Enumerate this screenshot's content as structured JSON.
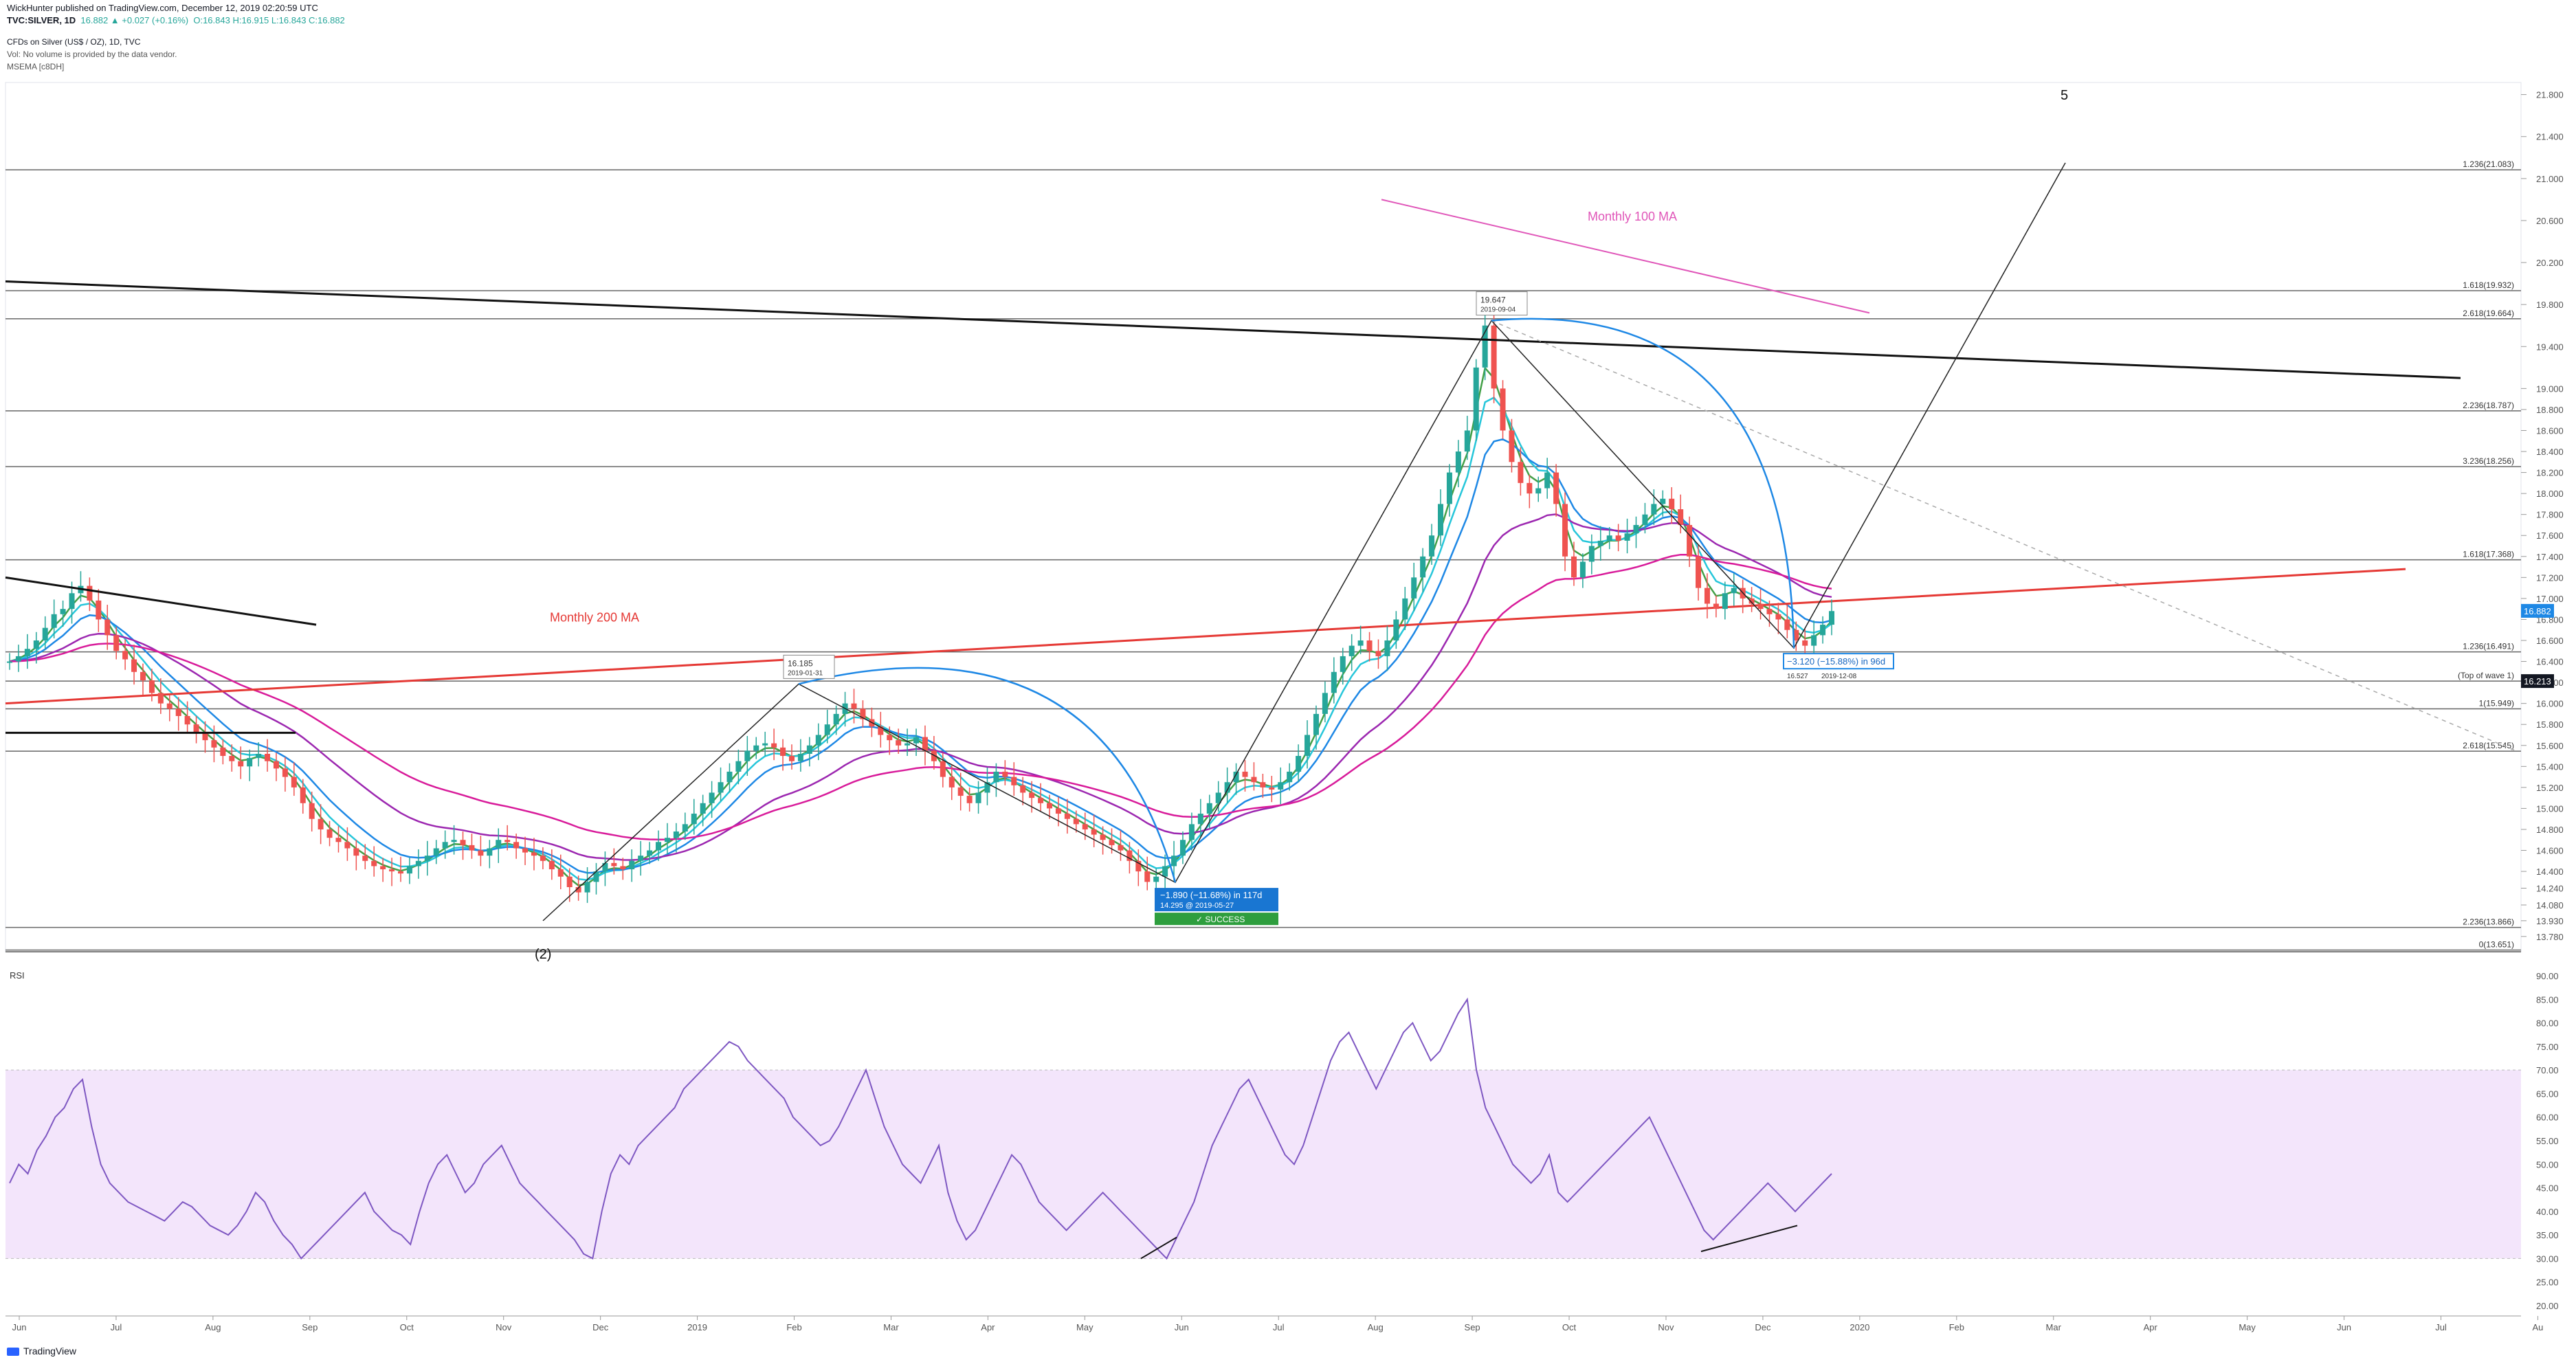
{
  "header": {
    "publisher_line": "WickHunter published on TradingView.com, December 12, 2019 02:20:59 UTC",
    "symbol": "TVC:SILVER, 1D",
    "change": "16.882 ▲ +0.027 (+0.16%)",
    "ohlc": "O:16.843  H:16.915  L:16.843  C:16.882",
    "title": "CFDs on Silver (US$ / OZ), 1D, TVC",
    "vol_note": "Vol: No volume is provided by the data vendor.",
    "indicator": "MSEMA [c8DH]"
  },
  "footer": {
    "brand": "TradingView"
  },
  "colors": {
    "up": "#26a69a",
    "down": "#ef5350",
    "ma200": "#e53935",
    "ma100": "#e056b9",
    "ema_cyan": "#26c6da",
    "ema_green": "#43a047",
    "ema_blue": "#1e88e5",
    "ema_purple": "#9c27b0",
    "ema_magenta": "#d81b9a",
    "rsi": "#7e57c2",
    "rsi_band": "#f3e5fb"
  },
  "chart_data": [
    {
      "type": "candlestick",
      "title": "CFDs on Silver (US$ / OZ), 1D, TVC",
      "x_tick_labels": [
        "Jun",
        "Jul",
        "Aug",
        "Sep",
        "Oct",
        "Nov",
        "Dec",
        "2019",
        "Feb",
        "Mar",
        "Apr",
        "May",
        "Jun",
        "Jul",
        "Aug",
        "Sep",
        "Oct",
        "Nov",
        "Dec",
        "2020",
        "Feb",
        "Mar",
        "Apr",
        "May",
        "Jun",
        "Jul",
        "Au"
      ],
      "y_ticks": [
        21.8,
        21.4,
        21.0,
        20.6,
        20.2,
        19.8,
        19.4,
        19.0,
        18.8,
        18.6,
        18.4,
        18.2,
        18.0,
        17.8,
        17.6,
        17.4,
        17.2,
        17.0,
        16.8,
        16.6,
        16.4,
        16.2,
        16.0,
        15.8,
        15.6,
        15.4,
        15.2,
        15.0,
        14.8,
        14.6,
        14.4,
        14.24,
        14.08,
        13.93,
        13.78
      ],
      "y_tick_labels": [
        "21.800",
        "21.400",
        "21.000",
        "20.600",
        "20.200",
        "19.800",
        "19.400",
        "19.000",
        "18.800",
        "18.600",
        "18.400",
        "18.200",
        "18.000",
        "17.800",
        "17.600",
        "17.400",
        "17.200",
        "17.000",
        "16.800",
        "16.600",
        "16.400",
        "16.200",
        "16.000",
        "15.800",
        "15.600",
        "15.400",
        "15.200",
        "15.000",
        "14.800",
        "14.600",
        "14.400",
        "14.240",
        "14.080",
        "13.930",
        "13.780"
      ],
      "last_price": "16.882",
      "price_badge": "16.213",
      "fib_levels": [
        {
          "label": "1.236(21.083)",
          "value": 21.083
        },
        {
          "label": "1.618(19.932)",
          "value": 19.932
        },
        {
          "label": "2.618(19.664)",
          "value": 19.664
        },
        {
          "label": "2.236(18.787)",
          "value": 18.787
        },
        {
          "label": "3.236(18.256)",
          "value": 18.256
        },
        {
          "label": "1.618(17.368)",
          "value": 17.368
        },
        {
          "label": "1.236(16.491)",
          "value": 16.491
        },
        {
          "label": "(Top of wave 1)",
          "value": 16.213
        },
        {
          "label": "1(15.949)",
          "value": 15.949
        },
        {
          "label": "2.618(15.545)",
          "value": 15.545
        },
        {
          "label": "2.236(13.866)",
          "value": 13.866
        },
        {
          "label": "0(13.651)",
          "value": 13.651
        }
      ],
      "annotations": {
        "monthly_200_ma": "Monthly 200 MA",
        "monthly_100_ma": "Monthly 100 MA",
        "wave_2": "(2)",
        "wave_5": "5",
        "peak_price": "19.647",
        "peak_date": "2019-09-04",
        "feb_price": "16.185",
        "feb_date": "2019-01-31",
        "low_measure": "−1.890 (−11.68%) in 117d",
        "low_detail": "14.295 @ 2019-05-27",
        "low_status": "✓ SUCCESS",
        "dec_measure": "−3.120 (−15.88%) in 96d",
        "dec_price": "16.527",
        "dec_date": "2019-12-08"
      },
      "series_close": [
        16.4,
        16.45,
        16.52,
        16.6,
        16.72,
        16.85,
        16.9,
        17.05,
        17.12,
        16.98,
        16.8,
        16.65,
        16.5,
        16.42,
        16.3,
        16.22,
        16.1,
        16.0,
        15.95,
        15.88,
        15.8,
        15.72,
        15.65,
        15.58,
        15.5,
        15.45,
        15.4,
        15.48,
        15.52,
        15.45,
        15.38,
        15.3,
        15.2,
        15.05,
        14.9,
        14.8,
        14.72,
        14.68,
        14.62,
        14.55,
        14.5,
        14.45,
        14.42,
        14.4,
        14.38,
        14.45,
        14.5,
        14.55,
        14.62,
        14.68,
        14.7,
        14.65,
        14.6,
        14.55,
        14.62,
        14.7,
        14.68,
        14.62,
        14.58,
        14.55,
        14.5,
        14.42,
        14.35,
        14.25,
        14.2,
        14.3,
        14.4,
        14.48,
        14.45,
        14.42,
        14.5,
        14.55,
        14.6,
        14.68,
        14.72,
        14.78,
        14.85,
        14.95,
        15.05,
        15.15,
        15.25,
        15.35,
        15.45,
        15.55,
        15.6,
        15.62,
        15.58,
        15.5,
        15.45,
        15.52,
        15.6,
        15.7,
        15.8,
        15.9,
        16.0,
        15.95,
        15.85,
        15.78,
        15.7,
        15.65,
        15.6,
        15.62,
        15.68,
        15.55,
        15.45,
        15.3,
        15.2,
        15.12,
        15.05,
        15.15,
        15.25,
        15.35,
        15.3,
        15.22,
        15.15,
        15.1,
        15.05,
        15.0,
        14.95,
        14.9,
        14.85,
        14.8,
        14.75,
        14.7,
        14.65,
        14.6,
        14.5,
        14.4,
        14.3,
        14.35,
        14.45,
        14.55,
        14.7,
        14.85,
        14.95,
        15.05,
        15.15,
        15.25,
        15.35,
        15.3,
        15.25,
        15.2,
        15.18,
        15.25,
        15.35,
        15.5,
        15.7,
        15.9,
        16.1,
        16.3,
        16.45,
        16.55,
        16.6,
        16.5,
        16.45,
        16.6,
        16.8,
        17.0,
        17.2,
        17.4,
        17.6,
        17.9,
        18.2,
        18.4,
        18.6,
        19.2,
        19.6,
        19.0,
        18.6,
        18.3,
        18.1,
        18.0,
        18.05,
        18.2,
        17.9,
        17.4,
        17.2,
        17.35,
        17.5,
        17.55,
        17.6,
        17.55,
        17.62,
        17.7,
        17.8,
        17.9,
        17.95,
        17.85,
        17.7,
        17.4,
        17.1,
        16.95,
        16.9,
        17.05,
        17.1,
        17.0,
        16.95,
        16.9,
        16.85,
        16.8,
        16.7,
        16.6,
        16.55,
        16.65,
        16.75,
        16.88
      ],
      "rsi": {
        "label": "RSI",
        "y_tick_labels": [
          "90.00",
          "85.00",
          "80.00",
          "75.00",
          "70.00",
          "65.00",
          "60.00",
          "55.00",
          "50.00",
          "45.00",
          "40.00",
          "35.00",
          "30.00",
          "25.00",
          "20.00"
        ],
        "ylim": [
          20,
          90
        ],
        "upper_band": 70,
        "lower_band": 30,
        "values": [
          46,
          50,
          48,
          53,
          56,
          60,
          62,
          66,
          68,
          58,
          50,
          46,
          44,
          42,
          41,
          40,
          39,
          38,
          40,
          42,
          41,
          39,
          37,
          36,
          35,
          37,
          40,
          44,
          42,
          38,
          35,
          33,
          30,
          32,
          34,
          36,
          38,
          40,
          42,
          44,
          40,
          38,
          36,
          35,
          33,
          40,
          46,
          50,
          52,
          48,
          44,
          46,
          50,
          52,
          54,
          50,
          46,
          44,
          42,
          40,
          38,
          36,
          34,
          31,
          30,
          40,
          48,
          52,
          50,
          54,
          56,
          58,
          60,
          62,
          66,
          68,
          70,
          72,
          74,
          76,
          75,
          72,
          70,
          68,
          66,
          64,
          60,
          58,
          56,
          54,
          55,
          58,
          62,
          66,
          70,
          64,
          58,
          54,
          50,
          48,
          46,
          50,
          54,
          44,
          38,
          34,
          36,
          40,
          44,
          48,
          52,
          50,
          46,
          42,
          40,
          38,
          36,
          38,
          40,
          42,
          44,
          42,
          40,
          38,
          36,
          34,
          32,
          30,
          34,
          38,
          42,
          48,
          54,
          58,
          62,
          66,
          68,
          64,
          60,
          56,
          52,
          50,
          54,
          60,
          66,
          72,
          76,
          78,
          74,
          70,
          66,
          70,
          74,
          78,
          80,
          76,
          72,
          74,
          78,
          82,
          85,
          70,
          62,
          58,
          54,
          50,
          48,
          46,
          48,
          52,
          44,
          42,
          44,
          46,
          48,
          50,
          52,
          54,
          56,
          58,
          60,
          56,
          52,
          48,
          44,
          40,
          36,
          34,
          36,
          38,
          40,
          42,
          44,
          46,
          44,
          42,
          40,
          42,
          44,
          46,
          48
        ]
      }
    }
  ]
}
